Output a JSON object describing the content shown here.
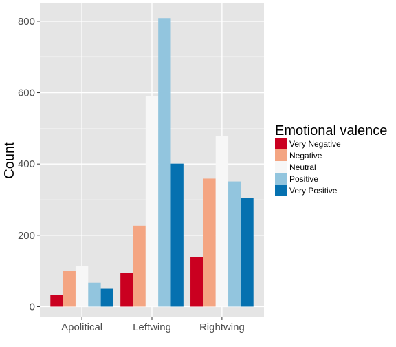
{
  "chart_data": {
    "type": "bar",
    "categories": [
      "Apolitical",
      "Leftwing",
      "Rightwing"
    ],
    "series": [
      {
        "name": "Very Negative",
        "color": "#ca0020",
        "values": [
          32,
          95,
          139
        ]
      },
      {
        "name": "Negative",
        "color": "#f4a582",
        "values": [
          100,
          227,
          359
        ]
      },
      {
        "name": "Neutral",
        "color": "#f7f7f7",
        "values": [
          113,
          590,
          479
        ]
      },
      {
        "name": "Positive",
        "color": "#92c5de",
        "values": [
          67,
          809,
          351
        ]
      },
      {
        "name": "Very Positive",
        "color": "#0571b0",
        "values": [
          50,
          401,
          304
        ]
      }
    ],
    "xlabel": "",
    "ylabel": "Count",
    "ylim": [
      -30,
      850
    ],
    "yticks": [
      0,
      200,
      400,
      600,
      800
    ],
    "ytick_labels": [
      "0",
      "200",
      "400",
      "600",
      "800"
    ],
    "grid": true,
    "legend_title": "Emotional valence",
    "legend_position": "right",
    "panel_background": "#e5e5e5"
  }
}
